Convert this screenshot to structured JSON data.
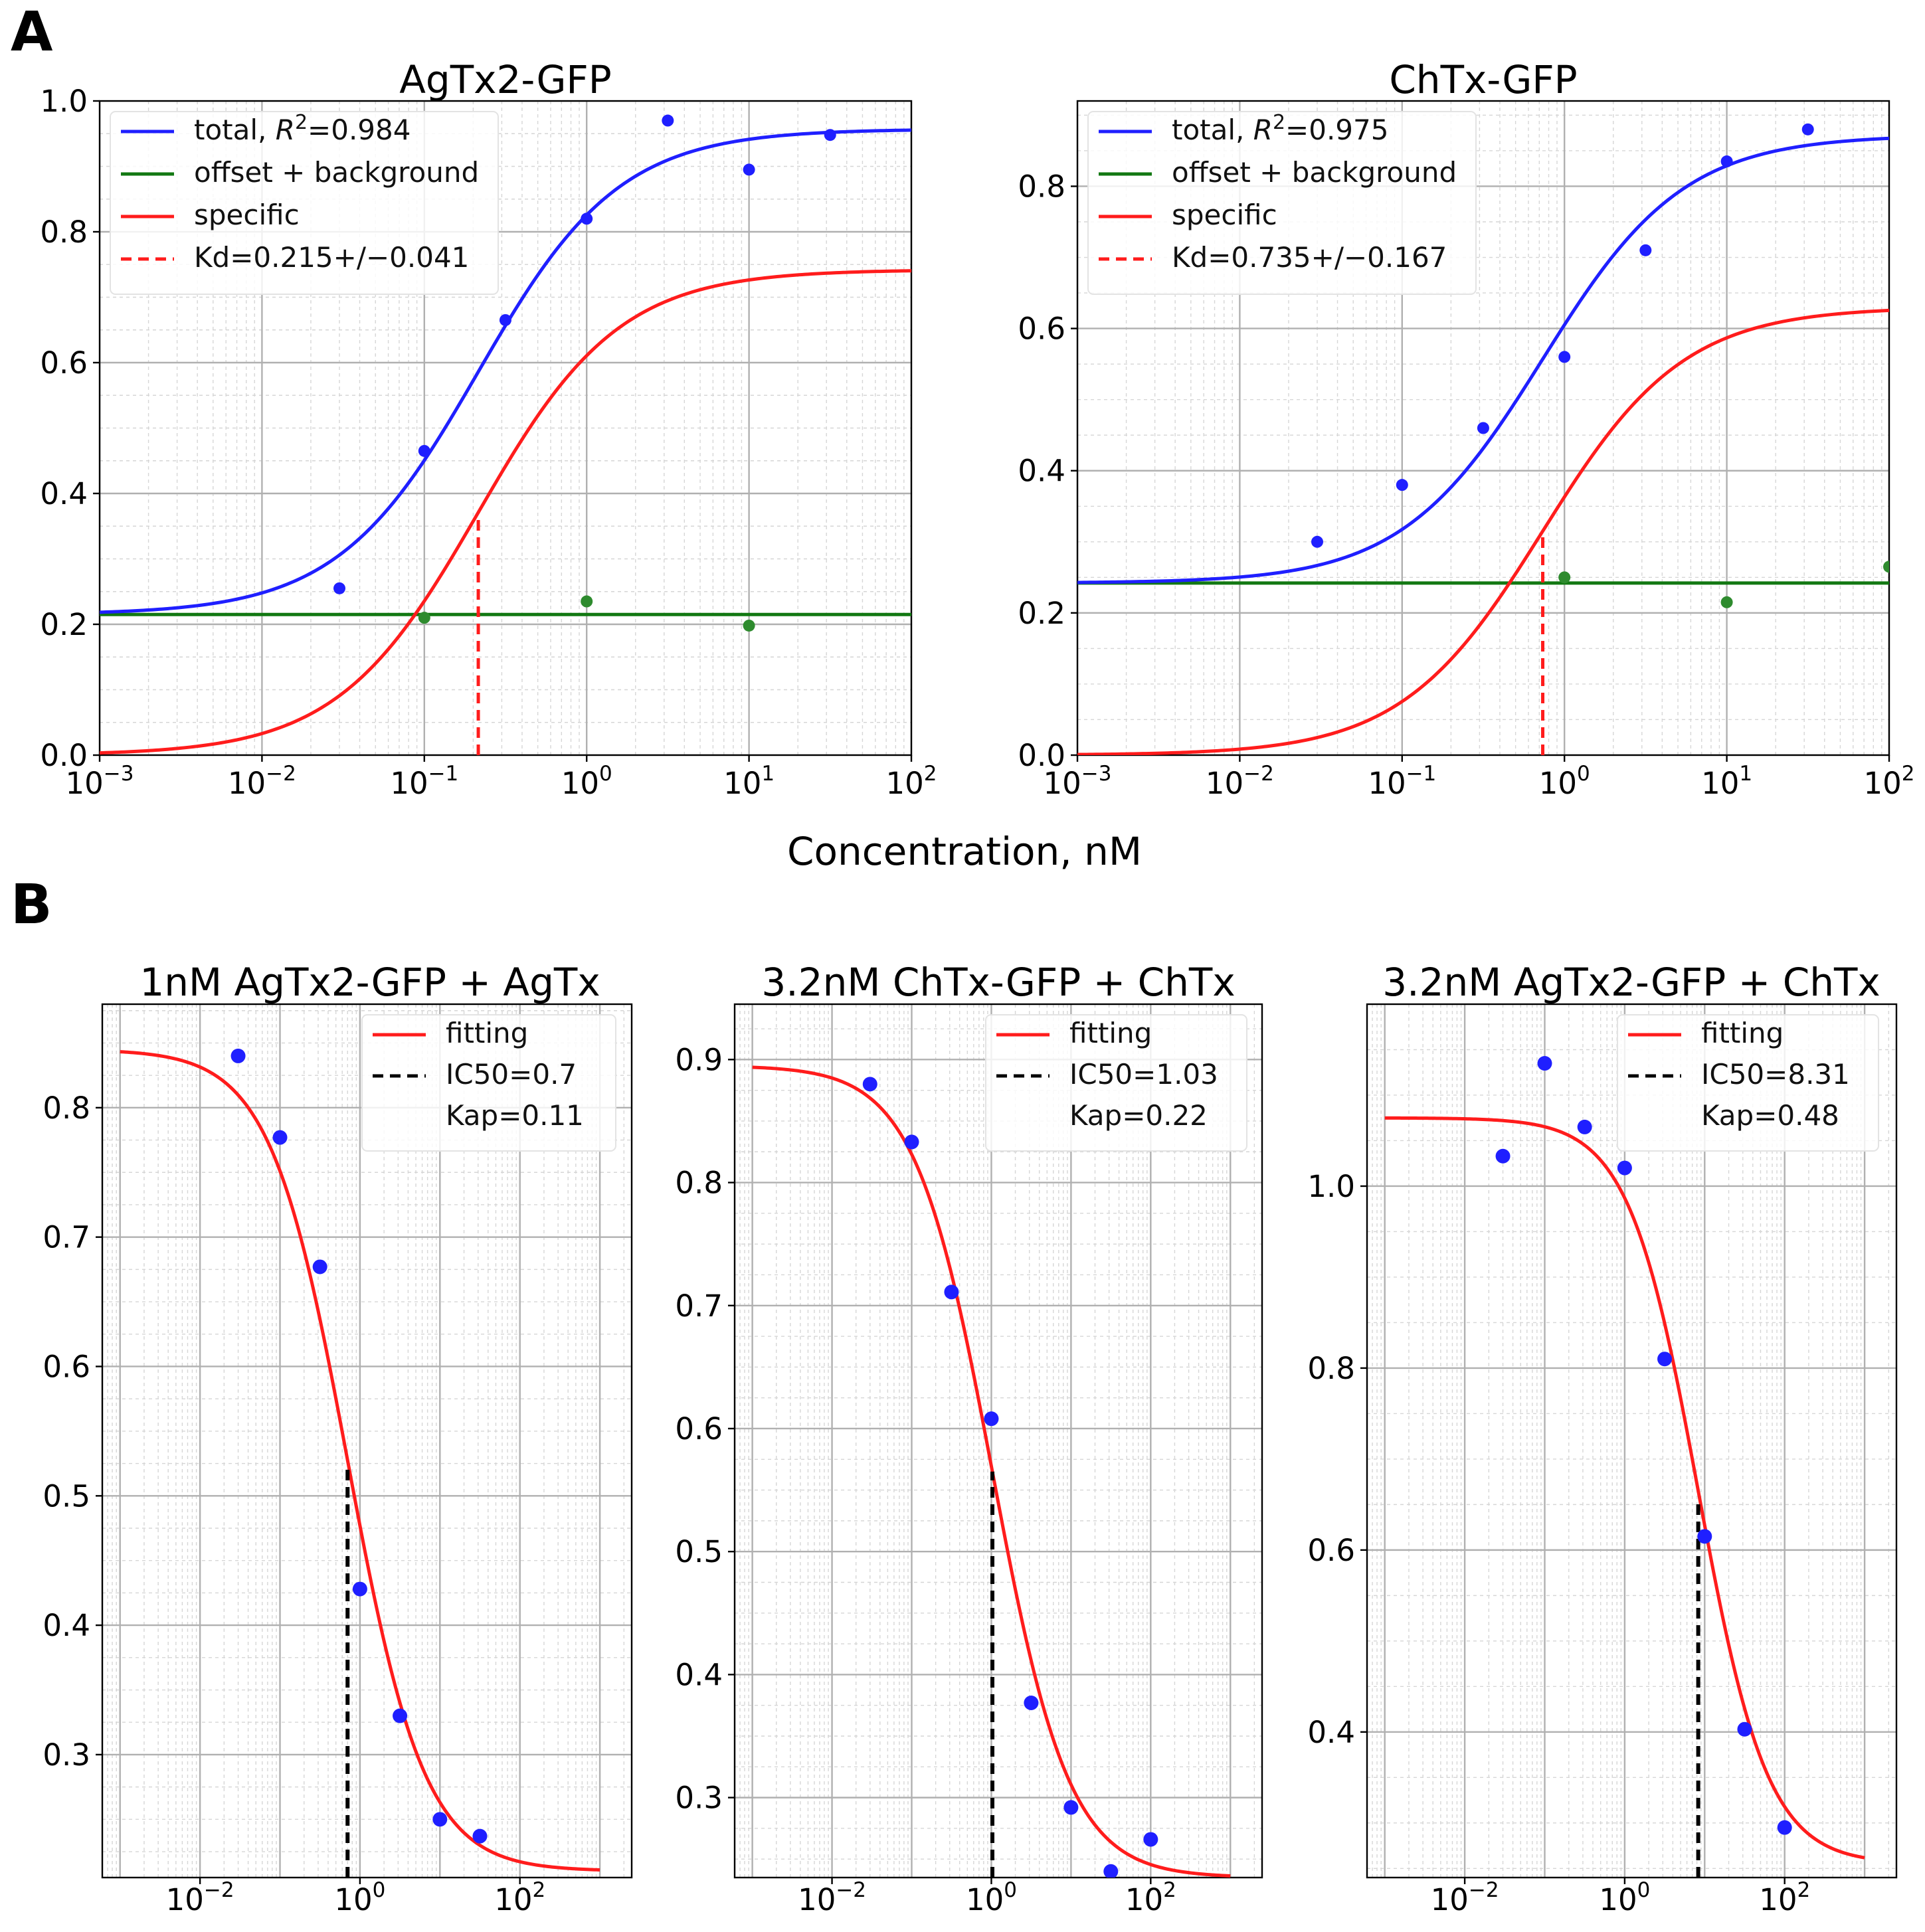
{
  "panels": {
    "a": "A",
    "b": "B"
  },
  "shared_xlabel": "Concentration, nM",
  "colors": {
    "total": "#1f1fff",
    "background": "#127812",
    "specific": "#ff1c1c",
    "ic50": "#000000",
    "points_bg": "#2e8b2e"
  },
  "chart_data": [
    {
      "id": "agtx2-gfp",
      "type": "line",
      "title": "AgTx2-GFP",
      "xscale": "log",
      "xlim": [
        0.001,
        100
      ],
      "ylim": [
        0.0,
        1.0
      ],
      "yticks": [
        0.0,
        0.2,
        0.4,
        0.6,
        0.8,
        1.0
      ],
      "ytick_labels": [
        "0.0",
        "0.2",
        "0.4",
        "0.6",
        "0.8",
        "1.0"
      ],
      "xtick_exponents": [
        "-3",
        "-2",
        "-1",
        "0",
        "1",
        "2"
      ],
      "grid": true,
      "legend_position": "upper-left",
      "legend": [
        {
          "label": "total, ",
          "math": "R",
          "sup": "2",
          "suffix": "=0.984",
          "color": "#1f1fff",
          "style": "solid"
        },
        {
          "label": "offset + background",
          "color": "#127812",
          "style": "solid"
        },
        {
          "label": "specific",
          "color": "#ff1c1c",
          "style": "solid"
        },
        {
          "label": "Kd=0.215+/−0.041",
          "color": "#ff1c1c",
          "style": "dashed"
        }
      ],
      "fit": {
        "offset": 0.215,
        "specific_max": 0.742,
        "kd": 0.215
      },
      "kd_marker": {
        "x": 0.215,
        "y_top": 0.37
      },
      "points_total": {
        "x": [
          0.03,
          0.1,
          0.316,
          1,
          3.16,
          10,
          31.6
        ],
        "y": [
          0.255,
          0.465,
          0.665,
          0.82,
          0.97,
          0.895,
          0.948
        ]
      },
      "points_background": {
        "x": [
          0.1,
          1,
          10
        ],
        "y": [
          0.21,
          0.235,
          0.198
        ]
      }
    },
    {
      "id": "chtx-gfp",
      "type": "line",
      "title": "ChTx-GFP",
      "xscale": "log",
      "xlim": [
        0.001,
        100
      ],
      "ylim": [
        0.0,
        0.92
      ],
      "yticks": [
        0.0,
        0.2,
        0.4,
        0.6,
        0.8
      ],
      "ytick_labels": [
        "0.0",
        "0.2",
        "0.4",
        "0.6",
        "0.8"
      ],
      "xtick_exponents": [
        "-3",
        "-2",
        "-1",
        "0",
        "1",
        "2"
      ],
      "grid": true,
      "legend_position": "upper-left",
      "legend": [
        {
          "label": "total, ",
          "math": "R",
          "sup": "2",
          "suffix": "=0.975",
          "color": "#1f1fff",
          "style": "solid"
        },
        {
          "label": "offset + background",
          "color": "#127812",
          "style": "solid"
        },
        {
          "label": "specific",
          "color": "#ff1c1c",
          "style": "solid"
        },
        {
          "label": "Kd=0.735+/−0.167",
          "color": "#ff1c1c",
          "style": "dashed"
        }
      ],
      "fit": {
        "offset": 0.242,
        "specific_max": 0.63,
        "kd": 0.735
      },
      "kd_marker": {
        "x": 0.735,
        "y_top": 0.31
      },
      "points_total": {
        "x": [
          0.03,
          0.1,
          0.316,
          1,
          3.16,
          10,
          31.6
        ],
        "y": [
          0.3,
          0.38,
          0.46,
          0.56,
          0.71,
          0.835,
          0.88
        ]
      },
      "points_background": {
        "x": [
          1,
          10,
          100
        ],
        "y": [
          0.25,
          0.215,
          0.265
        ]
      }
    },
    {
      "id": "agtx2-gfp-agtx",
      "type": "line",
      "title": "1nM AgTx2-GFP + AgTx",
      "xscale": "log",
      "xlim": [
        0.0006,
        2500
      ],
      "ylim": [
        0.205,
        0.88
      ],
      "yticks": [
        0.3,
        0.4,
        0.5,
        0.6,
        0.7,
        0.8
      ],
      "ytick_labels": [
        "0.3",
        "0.4",
        "0.5",
        "0.6",
        "0.7",
        "0.8"
      ],
      "xtick_exponents": [
        "-2",
        "0",
        "2"
      ],
      "grid": true,
      "legend_position": "upper-right",
      "legend": [
        {
          "label": "fitting",
          "color": "#ff1c1c",
          "style": "solid"
        },
        {
          "label": "IC50=0.7",
          "color": "#000000",
          "style": "dashed"
        },
        {
          "label": "Kap=0.11",
          "color": null,
          "style": "none"
        }
      ],
      "fit": {
        "top": 0.845,
        "bottom": 0.21,
        "ic50": 0.7,
        "hill": 0.9,
        "x_from": 0.001,
        "x_to": 1000
      },
      "ic50_marker": {
        "x": 0.7,
        "y_top": 0.525
      },
      "points": {
        "x": [
          0.03,
          0.1,
          0.316,
          1,
          3.16,
          10,
          31.6
        ],
        "y": [
          0.84,
          0.777,
          0.677,
          0.428,
          0.33,
          0.25,
          0.237
        ]
      }
    },
    {
      "id": "chtx-gfp-chtx",
      "type": "line",
      "title": "3.2nM ChTx-GFP + ChTx",
      "xscale": "log",
      "xlim": [
        0.0006,
        2500
      ],
      "ylim": [
        0.235,
        0.945
      ],
      "yticks": [
        0.3,
        0.4,
        0.5,
        0.6,
        0.7,
        0.8,
        0.9
      ],
      "ytick_labels": [
        "0.3",
        "0.4",
        "0.5",
        "0.6",
        "0.7",
        "0.8",
        "0.9"
      ],
      "xtick_exponents": [
        "-2",
        "0",
        "2"
      ],
      "grid": true,
      "legend_position": "upper-right",
      "legend": [
        {
          "label": "fitting",
          "color": "#ff1c1c",
          "style": "solid"
        },
        {
          "label": "IC50=1.03",
          "color": "#000000",
          "style": "dashed"
        },
        {
          "label": "Kap=0.22",
          "color": null,
          "style": "none"
        }
      ],
      "fit": {
        "top": 0.895,
        "bottom": 0.235,
        "ic50": 1.03,
        "hill": 0.9,
        "x_from": 0.001,
        "x_to": 1000
      },
      "ic50_marker": {
        "x": 1.03,
        "y_top": 0.565
      },
      "points": {
        "x": [
          0.03,
          0.1,
          0.316,
          1,
          3.16,
          10,
          31.6,
          100
        ],
        "y": [
          0.88,
          0.833,
          0.711,
          0.608,
          0.377,
          0.292,
          0.24,
          0.266
        ]
      }
    },
    {
      "id": "agtx2-gfp-chtx",
      "type": "line",
      "title": "3.2nM AgTx2-GFP + ChTx",
      "xscale": "log",
      "xlim": [
        0.0006,
        2500
      ],
      "ylim": [
        0.24,
        1.2
      ],
      "yticks": [
        0.4,
        0.6,
        0.8,
        1.0
      ],
      "ytick_labels": [
        "0.4",
        "0.6",
        "0.8",
        "1.0"
      ],
      "xtick_exponents": [
        "-2",
        "0",
        "2"
      ],
      "grid": true,
      "legend_position": "upper-right",
      "legend": [
        {
          "label": "fitting",
          "color": "#ff1c1c",
          "style": "solid"
        },
        {
          "label": "IC50=8.31",
          "color": "#000000",
          "style": "dashed"
        },
        {
          "label": "Kap=0.48",
          "color": null,
          "style": "none"
        }
      ],
      "fit": {
        "top": 1.075,
        "bottom": 0.255,
        "ic50": 8.31,
        "hill": 1.0,
        "x_from": 0.001,
        "x_to": 1000
      },
      "ic50_marker": {
        "x": 8.31,
        "y_top": 0.655
      },
      "points": {
        "x": [
          0.03,
          0.1,
          0.316,
          1,
          3.16,
          10,
          31.6,
          100
        ],
        "y": [
          1.033,
          1.135,
          1.065,
          1.02,
          0.81,
          0.615,
          0.403,
          0.295
        ]
      }
    }
  ]
}
